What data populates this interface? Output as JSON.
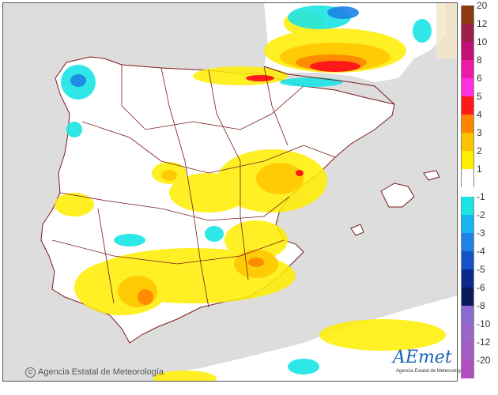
{
  "map": {
    "credit": {
      "symbol": "©",
      "text": "Agencia Estatal de Meteorología"
    },
    "logo": {
      "word": "AEmet",
      "subtitle": "Agencia Estatal de Meteorología"
    },
    "colors": {
      "sea": "#dddddd",
      "land": "#ffffff",
      "borders": "#7a1a1a"
    }
  },
  "legend": {
    "positive": [
      {
        "label": "20",
        "color": "#8b3a0e"
      },
      {
        "label": "12",
        "color": "#9c1f4a"
      },
      {
        "label": "10",
        "color": "#c0117a"
      },
      {
        "label": "8",
        "color": "#ee1aa5"
      },
      {
        "label": "6",
        "color": "#ff33dd"
      },
      {
        "label": "5",
        "color": "#ff1a1a"
      },
      {
        "label": "4",
        "color": "#ff8400"
      },
      {
        "label": "3",
        "color": "#ffc400"
      },
      {
        "label": "2",
        "color": "#ffee00"
      },
      {
        "label": "1",
        "color": "#ffffff"
      }
    ],
    "negative": [
      {
        "label": "-1",
        "color": "#1ae4e4"
      },
      {
        "label": "-2",
        "color": "#16b4f0"
      },
      {
        "label": "-3",
        "color": "#1e82e6"
      },
      {
        "label": "-4",
        "color": "#1452c8"
      },
      {
        "label": "-5",
        "color": "#0a2a8c"
      },
      {
        "label": "-6",
        "color": "#0a1a5c"
      },
      {
        "label": "-8",
        "color": "#8c6ad2"
      },
      {
        "label": "-10",
        "color": "#9a64c8"
      },
      {
        "label": "-12",
        "color": "#a35cc4"
      },
      {
        "label": "-20",
        "color": "#b050c0"
      }
    ]
  }
}
